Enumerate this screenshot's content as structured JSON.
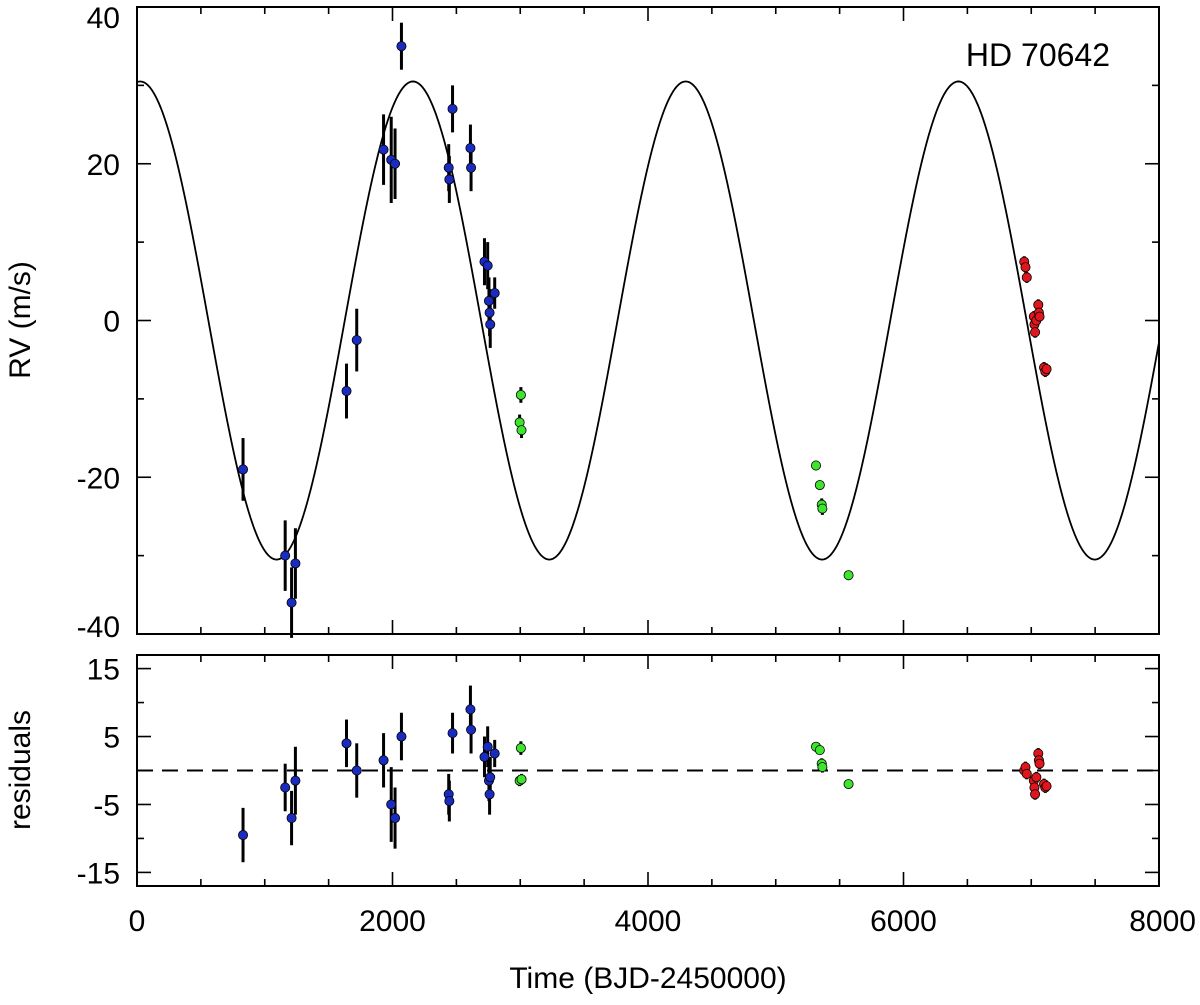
{
  "chart_data": [
    {
      "type": "scatter",
      "panel": "rv",
      "ylabel": "RV (m/s)",
      "xlim": [
        0,
        8000
      ],
      "ylim": [
        -40,
        40
      ],
      "y_ticks": [
        -40,
        -20,
        0,
        20,
        40
      ],
      "annotation": "HD 70642",
      "colors": {
        "blue": "#1a2bc0",
        "green": "#3de62d",
        "red": "#e0161c"
      },
      "model_curve": {
        "type": "sine",
        "period_days": 2135,
        "amplitude": 30.5,
        "offset": 0.0,
        "peak_time": 2160
      },
      "series": [
        {
          "name": "blue",
          "color": "#1a2bc0",
          "points": [
            {
              "x": 830,
              "y": -19.0,
              "err": 4.0
            },
            {
              "x": 1160,
              "y": -30.0,
              "err": 4.5
            },
            {
              "x": 1210,
              "y": -36.0,
              "err": 4.5
            },
            {
              "x": 1240,
              "y": -31.0,
              "err": 4.5
            },
            {
              "x": 1640,
              "y": -9.0,
              "err": 3.5
            },
            {
              "x": 1720,
              "y": -2.5,
              "err": 4.0
            },
            {
              "x": 1930,
              "y": 21.8,
              "err": 4.5
            },
            {
              "x": 1990,
              "y": 20.5,
              "err": 5.5
            },
            {
              "x": 2020,
              "y": 20.0,
              "err": 4.5
            },
            {
              "x": 2070,
              "y": 35.0,
              "err": 3.0
            },
            {
              "x": 2440,
              "y": 19.5,
              "err": 3.0
            },
            {
              "x": 2445,
              "y": 18.0,
              "err": 3.0
            },
            {
              "x": 2470,
              "y": 27.0,
              "err": 3.0
            },
            {
              "x": 2610,
              "y": 22.0,
              "err": 3.0
            },
            {
              "x": 2615,
              "y": 19.5,
              "err": 3.0
            },
            {
              "x": 2720,
              "y": 7.5,
              "err": 3.0
            },
            {
              "x": 2745,
              "y": 7.0,
              "err": 3.0
            },
            {
              "x": 2755,
              "y": 2.5,
              "err": 3.0
            },
            {
              "x": 2760,
              "y": 1.0,
              "err": 3.0
            },
            {
              "x": 2765,
              "y": -0.5,
              "err": 3.0
            },
            {
              "x": 2800,
              "y": 3.5,
              "err": 2.0
            }
          ]
        },
        {
          "name": "green",
          "color": "#3de62d",
          "points": [
            {
              "x": 3005,
              "y": -9.5,
              "err": 1.0
            },
            {
              "x": 2995,
              "y": -13.0,
              "err": 1.0
            },
            {
              "x": 3010,
              "y": -14.0,
              "err": 1.0
            },
            {
              "x": 5315,
              "y": -18.5,
              "err": 0.6
            },
            {
              "x": 5345,
              "y": -21.0,
              "err": 0.6
            },
            {
              "x": 5360,
              "y": -23.5,
              "err": 0.8
            },
            {
              "x": 5365,
              "y": -24.0,
              "err": 0.8
            },
            {
              "x": 5570,
              "y": -32.5,
              "err": 0.6
            }
          ]
        },
        {
          "name": "red",
          "color": "#e0161c",
          "points": [
            {
              "x": 6945,
              "y": 7.5,
              "err": 0.7
            },
            {
              "x": 6955,
              "y": 6.8,
              "err": 0.7
            },
            {
              "x": 6965,
              "y": 5.5,
              "err": 0.7
            },
            {
              "x": 7020,
              "y": 0.5,
              "err": 0.7
            },
            {
              "x": 7025,
              "y": -0.5,
              "err": 0.7
            },
            {
              "x": 7030,
              "y": -1.5,
              "err": 0.7
            },
            {
              "x": 7040,
              "y": 0.0,
              "err": 0.7
            },
            {
              "x": 7055,
              "y": 2.0,
              "err": 0.7
            },
            {
              "x": 7060,
              "y": 1.0,
              "err": 0.7
            },
            {
              "x": 7065,
              "y": 0.5,
              "err": 0.7
            },
            {
              "x": 7100,
              "y": -6.0,
              "err": 0.7
            },
            {
              "x": 7110,
              "y": -6.5,
              "err": 0.7
            },
            {
              "x": 7120,
              "y": -6.2,
              "err": 0.7
            }
          ]
        }
      ]
    },
    {
      "type": "scatter",
      "panel": "residuals",
      "xlabel": "Time (BJD-2450000)",
      "ylabel": "residuals",
      "xlim": [
        0,
        8000
      ],
      "ylim": [
        -17,
        17
      ],
      "x_ticks": [
        0,
        2000,
        4000,
        6000,
        8000
      ],
      "y_ticks": [
        -15,
        -5,
        5,
        15
      ],
      "reference_line": {
        "y": 0,
        "style": "dashed"
      },
      "series": [
        {
          "name": "blue",
          "color": "#1a2bc0",
          "points": [
            {
              "x": 830,
              "y": -9.5,
              "err": 4.0
            },
            {
              "x": 1160,
              "y": -2.5,
              "err": 3.5
            },
            {
              "x": 1210,
              "y": -7.0,
              "err": 4.0
            },
            {
              "x": 1240,
              "y": -1.5,
              "err": 5.0
            },
            {
              "x": 1640,
              "y": 4.0,
              "err": 3.5
            },
            {
              "x": 1720,
              "y": 0.0,
              "err": 4.0
            },
            {
              "x": 1930,
              "y": 1.5,
              "err": 4.0
            },
            {
              "x": 1990,
              "y": -5.0,
              "err": 5.5
            },
            {
              "x": 2020,
              "y": -7.0,
              "err": 4.5
            },
            {
              "x": 2070,
              "y": 5.0,
              "err": 3.5
            },
            {
              "x": 2440,
              "y": -3.5,
              "err": 3.0
            },
            {
              "x": 2445,
              "y": -4.5,
              "err": 3.0
            },
            {
              "x": 2470,
              "y": 5.5,
              "err": 3.0
            },
            {
              "x": 2610,
              "y": 9.0,
              "err": 3.5
            },
            {
              "x": 2615,
              "y": 6.0,
              "err": 3.5
            },
            {
              "x": 2720,
              "y": 2.0,
              "err": 3.0
            },
            {
              "x": 2745,
              "y": 3.5,
              "err": 3.0
            },
            {
              "x": 2755,
              "y": -1.5,
              "err": 3.0
            },
            {
              "x": 2760,
              "y": -3.5,
              "err": 3.0
            },
            {
              "x": 2765,
              "y": -1.0,
              "err": 3.0
            },
            {
              "x": 2800,
              "y": 2.5,
              "err": 2.0
            }
          ]
        },
        {
          "name": "green",
          "color": "#3de62d",
          "points": [
            {
              "x": 3005,
              "y": 3.3,
              "err": 1.0
            },
            {
              "x": 2995,
              "y": -1.5,
              "err": 0.8
            },
            {
              "x": 3010,
              "y": -1.3,
              "err": 0.8
            },
            {
              "x": 5315,
              "y": 3.5,
              "err": 0.5
            },
            {
              "x": 5345,
              "y": 3.0,
              "err": 0.5
            },
            {
              "x": 5360,
              "y": 1.0,
              "err": 0.8
            },
            {
              "x": 5365,
              "y": 0.5,
              "err": 0.8
            },
            {
              "x": 5570,
              "y": -2.0,
              "err": 0.5
            }
          ]
        },
        {
          "name": "red",
          "color": "#e0161c",
          "points": [
            {
              "x": 6945,
              "y": 0.0,
              "err": 0.8
            },
            {
              "x": 6955,
              "y": 0.5,
              "err": 0.8
            },
            {
              "x": 6965,
              "y": -0.5,
              "err": 0.8
            },
            {
              "x": 7020,
              "y": -1.5,
              "err": 0.8
            },
            {
              "x": 7025,
              "y": -2.5,
              "err": 0.8
            },
            {
              "x": 7030,
              "y": -3.5,
              "err": 0.8
            },
            {
              "x": 7040,
              "y": -1.0,
              "err": 0.8
            },
            {
              "x": 7055,
              "y": 2.5,
              "err": 0.8
            },
            {
              "x": 7060,
              "y": 1.5,
              "err": 0.8
            },
            {
              "x": 7065,
              "y": 1.0,
              "err": 0.8
            },
            {
              "x": 7100,
              "y": -2.0,
              "err": 0.8
            },
            {
              "x": 7110,
              "y": -2.5,
              "err": 0.8
            },
            {
              "x": 7120,
              "y": -2.3,
              "err": 0.8
            }
          ]
        }
      ]
    }
  ]
}
